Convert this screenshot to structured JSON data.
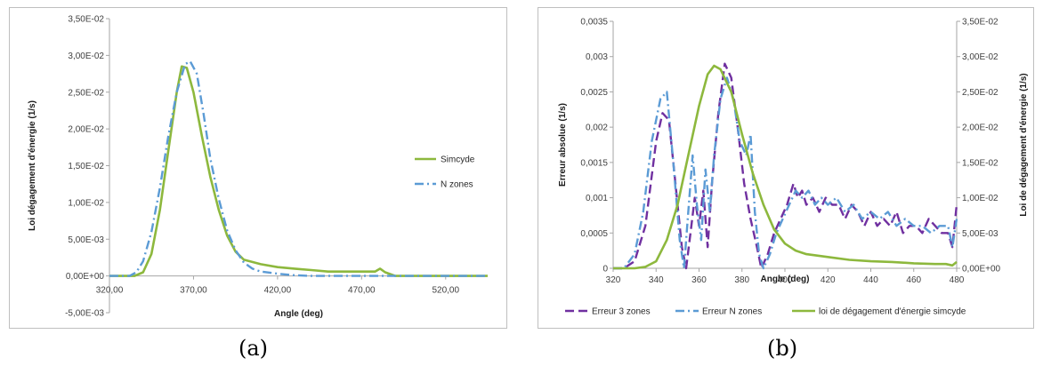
{
  "captions": {
    "a": "(a)",
    "b": "(b)"
  },
  "colors": {
    "green": "#8db83d",
    "lightblue": "#5b9bd5",
    "purple": "#7030a0",
    "axis": "#a6a6a6"
  },
  "chart_data": [
    {
      "type": "line",
      "xlabel": "Angle (deg)",
      "ylabel": "Loi dégagement d'énergie (1/s)",
      "xlim": [
        320,
        545
      ],
      "ylim": [
        -0.005,
        0.035
      ],
      "x_ticks": [
        320,
        370,
        420,
        470,
        520
      ],
      "x_tick_labels": [
        "320,00",
        "370,00",
        "420,00",
        "470,00",
        "520,00"
      ],
      "y_ticks": [
        -0.005,
        0,
        0.005,
        0.01,
        0.015,
        0.02,
        0.025,
        0.03,
        0.035
      ],
      "y_tick_labels": [
        "-5,00E-03",
        "0,00E+00",
        "5,00E-03",
        "1,00E-02",
        "1,50E-02",
        "2,00E-02",
        "2,50E-02",
        "3,00E-02",
        "3,50E-02"
      ],
      "legend_position": "right",
      "series": [
        {
          "name": "Simcyde",
          "style": "solid",
          "x": [
            320,
            335,
            340,
            345,
            350,
            355,
            360,
            363,
            366,
            370,
            375,
            380,
            385,
            390,
            395,
            400,
            410,
            420,
            430,
            440,
            450,
            460,
            470,
            478,
            481,
            484,
            490,
            545
          ],
          "y": [
            0,
            0,
            0.0005,
            0.003,
            0.009,
            0.017,
            0.025,
            0.0285,
            0.0283,
            0.025,
            0.019,
            0.0135,
            0.009,
            0.0055,
            0.0033,
            0.0022,
            0.0016,
            0.0012,
            0.001,
            0.0008,
            0.0006,
            0.0006,
            0.0006,
            0.0006,
            0.001,
            0.0005,
            0,
            0
          ]
        },
        {
          "name": "N zones",
          "style": "dashdot",
          "x": [
            320,
            332,
            336,
            340,
            345,
            350,
            355,
            360,
            365,
            368,
            372,
            376,
            380,
            385,
            390,
            395,
            400,
            405,
            410,
            420,
            430,
            440,
            450,
            460,
            470,
            545
          ],
          "y": [
            0,
            0,
            0.0005,
            0.002,
            0.006,
            0.012,
            0.019,
            0.025,
            0.0288,
            0.0292,
            0.0275,
            0.022,
            0.016,
            0.0105,
            0.0062,
            0.0035,
            0.0018,
            0.001,
            0.0006,
            0.0003,
            0.0001,
            0,
            0,
            0,
            0,
            0
          ]
        }
      ]
    },
    {
      "type": "line",
      "xlabel": "Angle (deg)",
      "ylabel": "Erreur absolue (1/s)",
      "y2label": "Loi de dégagement d'énergie (1/s)",
      "xlim": [
        320,
        480
      ],
      "ylim": [
        0,
        0.0035
      ],
      "y2lim": [
        0,
        0.035
      ],
      "x_ticks": [
        320,
        340,
        360,
        380,
        400,
        420,
        440,
        460,
        480
      ],
      "x_tick_labels": [
        "320",
        "340",
        "360",
        "380",
        "400",
        "420",
        "440",
        "460",
        "480"
      ],
      "y_ticks": [
        0,
        0.0005,
        0.001,
        0.0015,
        0.002,
        0.0025,
        0.003,
        0.0035
      ],
      "y_tick_labels": [
        "0",
        "0,0005",
        "0,001",
        "0,0015",
        "0,002",
        "0,0025",
        "0,003",
        "0,0035"
      ],
      "y2_ticks": [
        0,
        0.005,
        0.01,
        0.015,
        0.02,
        0.025,
        0.03,
        0.035
      ],
      "y2_tick_labels": [
        "0,00E+00",
        "5,00E-03",
        "1,00E-02",
        "1,50E-02",
        "2,00E-02",
        "2,50E-02",
        "3,00E-02",
        "3,50E-02"
      ],
      "legend_position": "bottom",
      "series": [
        {
          "name": "Erreur 3 zones",
          "style": "dash",
          "axis": "left",
          "x": [
            320,
            325,
            330,
            335,
            340,
            343,
            346,
            349,
            352,
            354,
            356,
            358,
            360,
            362,
            364,
            366,
            369,
            372,
            375,
            378,
            381,
            384,
            387,
            389,
            392,
            395,
            398,
            401,
            404,
            406,
            408,
            410,
            413,
            416,
            419,
            422,
            425,
            428,
            431,
            434,
            437,
            440,
            443,
            446,
            449,
            452,
            455,
            458,
            461,
            464,
            467,
            470,
            473,
            476,
            478,
            480
          ],
          "y": [
            0,
            0,
            0.0001,
            0.0006,
            0.0018,
            0.0022,
            0.0021,
            0.0012,
            0.0003,
            0,
            0.0005,
            0.001,
            0.0006,
            0.0011,
            0.0003,
            0.0012,
            0.0022,
            0.0029,
            0.0027,
            0.002,
            0.0012,
            0.0007,
            0.0003,
            0,
            0.0002,
            0.0005,
            0.0007,
            0.0009,
            0.0012,
            0.001,
            0.0011,
            0.0009,
            0.001,
            0.0008,
            0.001,
            0.0009,
            0.0009,
            0.0007,
            0.0009,
            0.0008,
            0.0006,
            0.0008,
            0.0006,
            0.0007,
            0.0006,
            0.0008,
            0.0005,
            0.0006,
            0.0006,
            0.0005,
            0.0007,
            0.0006,
            0.0005,
            0.0005,
            0.0003,
            0.0009
          ]
        },
        {
          "name": "Erreur N zones",
          "style": "dashdot",
          "axis": "left",
          "x": [
            320,
            325,
            330,
            334,
            338,
            342,
            345,
            348,
            351,
            353,
            355,
            357,
            359,
            361,
            363,
            365,
            367,
            370,
            373,
            376,
            379,
            382,
            384,
            386,
            388,
            390,
            393,
            396,
            399,
            402,
            405,
            408,
            411,
            414,
            417,
            420,
            424,
            428,
            432,
            436,
            440,
            444,
            448,
            452,
            456,
            460,
            464,
            468,
            472,
            476,
            478,
            480
          ],
          "y": [
            0,
            0,
            0.0002,
            0.0008,
            0.0018,
            0.0024,
            0.0025,
            0.0015,
            0.0004,
            0,
            0.0008,
            0.0016,
            0.0009,
            0.0004,
            0.0014,
            0.0008,
            0.0016,
            0.0024,
            0.0027,
            0.0024,
            0.0018,
            0.0016,
            0.0019,
            0.0008,
            0.0002,
            0,
            0.0002,
            0.0005,
            0.0007,
            0.0009,
            0.0011,
            0.001,
            0.0011,
            0.0009,
            0.001,
            0.0009,
            0.001,
            0.0008,
            0.0009,
            0.0007,
            0.0008,
            0.0007,
            0.0008,
            0.0006,
            0.0007,
            0.0006,
            0.0006,
            0.0005,
            0.0006,
            0.0006,
            0.0003,
            0.0007
          ]
        },
        {
          "name": "loi de dégagement d'énergie simcyde",
          "style": "solid",
          "axis": "right",
          "x": [
            320,
            330,
            335,
            340,
            345,
            350,
            355,
            360,
            364,
            367,
            370,
            375,
            380,
            385,
            390,
            395,
            400,
            405,
            410,
            420,
            430,
            440,
            450,
            460,
            470,
            475,
            478,
            480
          ],
          "y": [
            0,
            0,
            0.0002,
            0.001,
            0.004,
            0.009,
            0.016,
            0.023,
            0.0275,
            0.0287,
            0.0282,
            0.025,
            0.019,
            0.0135,
            0.009,
            0.0055,
            0.0035,
            0.0025,
            0.002,
            0.0016,
            0.0012,
            0.001,
            0.0009,
            0.0007,
            0.0006,
            0.0006,
            0.0004,
            0.0009
          ]
        }
      ]
    }
  ]
}
